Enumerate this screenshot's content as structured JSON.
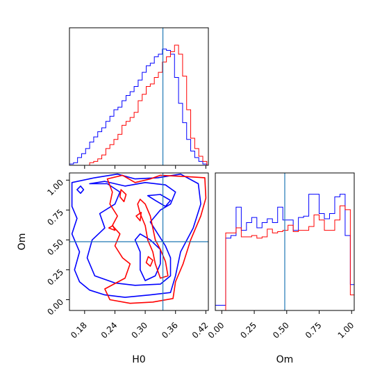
{
  "chart_data": {
    "type": "corner",
    "parameters": [
      "H0",
      "Om"
    ],
    "truths": {
      "H0": 0.335,
      "Om": 0.485
    },
    "series_colors": {
      "blue": "#0000ff",
      "red": "#ff0000"
    },
    "truth_color": "#1f77b4",
    "hist_H0": {
      "xlim": [
        0.15,
        0.425
      ],
      "bin_edges": [
        0.15,
        0.158,
        0.166,
        0.174,
        0.182,
        0.19,
        0.198,
        0.206,
        0.214,
        0.222,
        0.23,
        0.238,
        0.246,
        0.254,
        0.262,
        0.27,
        0.278,
        0.286,
        0.294,
        0.302,
        0.31,
        0.318,
        0.326,
        0.334,
        0.342,
        0.35,
        0.358,
        0.366,
        0.374,
        0.382,
        0.39,
        0.398,
        0.406,
        0.414,
        0.422
      ],
      "blue": [
        0.01,
        0.02,
        0.06,
        0.09,
        0.13,
        0.18,
        0.22,
        0.26,
        0.29,
        0.34,
        0.38,
        0.43,
        0.45,
        0.5,
        0.54,
        0.57,
        0.61,
        0.66,
        0.72,
        0.77,
        0.79,
        0.84,
        0.86,
        0.9,
        0.89,
        0.86,
        0.68,
        0.48,
        0.33,
        0.2,
        0.11,
        0.06,
        0.03,
        0.01
      ],
      "red": [
        0.0,
        0.0,
        0.0,
        0.0,
        0.0,
        0.02,
        0.03,
        0.05,
        0.08,
        0.13,
        0.16,
        0.2,
        0.24,
        0.31,
        0.34,
        0.37,
        0.41,
        0.5,
        0.55,
        0.61,
        0.63,
        0.68,
        0.72,
        0.8,
        0.84,
        0.88,
        0.93,
        0.86,
        0.69,
        0.43,
        0.21,
        0.13,
        0.07,
        0.03
      ]
    },
    "hist_Om": {
      "xlim": [
        -0.05,
        1.02
      ],
      "bin_edges": [
        -0.05,
        -0.01,
        0.03,
        0.07,
        0.11,
        0.15,
        0.19,
        0.23,
        0.27,
        0.31,
        0.35,
        0.39,
        0.43,
        0.47,
        0.51,
        0.55,
        0.59,
        0.63,
        0.67,
        0.71,
        0.75,
        0.79,
        0.83,
        0.87,
        0.91,
        0.95,
        0.99,
        1.02
      ],
      "blue": [
        0.04,
        0.04,
        0.56,
        0.58,
        0.8,
        0.62,
        0.68,
        0.72,
        0.64,
        0.68,
        0.71,
        0.68,
        0.8,
        0.7,
        0.7,
        0.62,
        0.72,
        0.73,
        0.9,
        0.9,
        0.75,
        0.71,
        0.75,
        0.88,
        0.9,
        0.58,
        0.2
      ],
      "red": [
        0.0,
        0.0,
        0.6,
        0.6,
        0.64,
        0.57,
        0.57,
        0.58,
        0.56,
        0.57,
        0.63,
        0.6,
        0.61,
        0.62,
        0.66,
        0.61,
        0.62,
        0.62,
        0.65,
        0.74,
        0.7,
        0.62,
        0.62,
        0.7,
        0.81,
        0.78,
        0.12
      ]
    },
    "scatter_panel": {
      "xlim": [
        0.15,
        0.425
      ],
      "ylim": [
        -0.09,
        1.06
      ],
      "xticks": [
        "0.18",
        "0.24",
        "0.30",
        "0.36",
        "0.42"
      ],
      "yticks": [
        "0.00",
        "0.25",
        "0.50",
        "0.75",
        "1.00"
      ],
      "xlabel": "H0",
      "ylabel": "Om"
    },
    "om_panel": {
      "xticks": [
        "0.00",
        "0.25",
        "0.50",
        "0.75",
        "1.00"
      ],
      "xlabel": "Om"
    },
    "contours": {
      "blue": [
        [
          [
            0.155,
            0.98
          ],
          [
            0.2,
            1.02
          ],
          [
            0.245,
            1.05
          ],
          [
            0.28,
            1.01
          ],
          [
            0.325,
            1.02
          ],
          [
            0.37,
            1.05
          ],
          [
            0.405,
            0.97
          ],
          [
            0.41,
            0.8
          ],
          [
            0.395,
            0.6
          ],
          [
            0.37,
            0.4
          ],
          [
            0.36,
            0.2
          ],
          [
            0.35,
            0.06
          ],
          [
            0.31,
            0.04
          ],
          [
            0.26,
            0.02
          ],
          [
            0.22,
            0.04
          ],
          [
            0.19,
            0.08
          ],
          [
            0.17,
            0.15
          ],
          [
            0.16,
            0.25
          ],
          [
            0.17,
            0.4
          ],
          [
            0.155,
            0.55
          ],
          [
            0.165,
            0.68
          ],
          [
            0.155,
            0.78
          ],
          [
            0.155,
            0.98
          ]
        ],
        [
          [
            0.19,
            0.97
          ],
          [
            0.225,
            0.97
          ],
          [
            0.25,
            0.9
          ],
          [
            0.24,
            0.8
          ],
          [
            0.21,
            0.72
          ],
          [
            0.22,
            0.6
          ],
          [
            0.195,
            0.5
          ],
          [
            0.185,
            0.35
          ],
          [
            0.2,
            0.2
          ],
          [
            0.24,
            0.14
          ],
          [
            0.28,
            0.12
          ],
          [
            0.33,
            0.13
          ],
          [
            0.35,
            0.2
          ],
          [
            0.35,
            0.35
          ],
          [
            0.34,
            0.45
          ],
          [
            0.325,
            0.55
          ],
          [
            0.31,
            0.65
          ],
          [
            0.33,
            0.75
          ],
          [
            0.35,
            0.8
          ],
          [
            0.36,
            0.9
          ],
          [
            0.34,
            0.96
          ],
          [
            0.3,
            0.98
          ],
          [
            0.26,
            0.95
          ],
          [
            0.22,
            0.99
          ],
          [
            0.19,
            0.97
          ]
        ],
        [
          [
            0.29,
            0.55
          ],
          [
            0.31,
            0.5
          ],
          [
            0.33,
            0.42
          ],
          [
            0.33,
            0.3
          ],
          [
            0.32,
            0.2
          ],
          [
            0.3,
            0.16
          ],
          [
            0.29,
            0.25
          ],
          [
            0.29,
            0.4
          ],
          [
            0.28,
            0.5
          ],
          [
            0.29,
            0.55
          ]
        ],
        [
          [
            0.305,
            0.87
          ],
          [
            0.32,
            0.83
          ],
          [
            0.34,
            0.78
          ],
          [
            0.35,
            0.83
          ],
          [
            0.33,
            0.88
          ],
          [
            0.305,
            0.87
          ]
        ],
        [
          [
            0.165,
            0.92
          ],
          [
            0.172,
            0.89
          ],
          [
            0.178,
            0.92
          ],
          [
            0.172,
            0.95
          ],
          [
            0.165,
            0.92
          ]
        ]
      ],
      "red": [
        [
          [
            0.225,
            1.01
          ],
          [
            0.255,
            1.04
          ],
          [
            0.28,
            0.98
          ],
          [
            0.31,
            1.01
          ],
          [
            0.33,
            1.04
          ],
          [
            0.38,
            1.03
          ],
          [
            0.418,
            1.02
          ],
          [
            0.42,
            0.85
          ],
          [
            0.41,
            0.7
          ],
          [
            0.39,
            0.5
          ],
          [
            0.375,
            0.3
          ],
          [
            0.36,
            0.15
          ],
          [
            0.355,
            0.01
          ],
          [
            0.315,
            -0.02
          ],
          [
            0.27,
            -0.03
          ],
          [
            0.23,
            0.0
          ],
          [
            0.22,
            0.09
          ],
          [
            0.26,
            0.18
          ],
          [
            0.27,
            0.3
          ],
          [
            0.255,
            0.35
          ],
          [
            0.24,
            0.45
          ],
          [
            0.25,
            0.55
          ],
          [
            0.235,
            0.62
          ],
          [
            0.245,
            0.7
          ],
          [
            0.23,
            0.8
          ],
          [
            0.235,
            0.9
          ],
          [
            0.225,
            1.01
          ]
        ],
        [
          [
            0.29,
            0.84
          ],
          [
            0.3,
            0.8
          ],
          [
            0.31,
            0.7
          ],
          [
            0.315,
            0.6
          ],
          [
            0.32,
            0.5
          ],
          [
            0.33,
            0.42
          ],
          [
            0.34,
            0.32
          ],
          [
            0.345,
            0.2
          ],
          [
            0.33,
            0.18
          ],
          [
            0.32,
            0.3
          ],
          [
            0.315,
            0.4
          ],
          [
            0.305,
            0.5
          ],
          [
            0.3,
            0.62
          ],
          [
            0.29,
            0.72
          ],
          [
            0.285,
            0.8
          ],
          [
            0.29,
            0.84
          ]
        ],
        [
          [
            0.252,
            0.92
          ],
          [
            0.262,
            0.88
          ],
          [
            0.258,
            0.82
          ],
          [
            0.25,
            0.86
          ],
          [
            0.252,
            0.92
          ]
        ],
        [
          [
            0.306,
            0.36
          ],
          [
            0.315,
            0.33
          ],
          [
            0.31,
            0.28
          ],
          [
            0.302,
            0.31
          ],
          [
            0.306,
            0.36
          ]
        ],
        [
          [
            0.228,
            0.6
          ],
          [
            0.24,
            0.58
          ],
          [
            0.236,
            0.62
          ],
          [
            0.228,
            0.6
          ]
        ],
        [
          [
            0.282,
            0.7
          ],
          [
            0.29,
            0.66
          ],
          [
            0.292,
            0.73
          ],
          [
            0.282,
            0.7
          ]
        ]
      ]
    }
  }
}
